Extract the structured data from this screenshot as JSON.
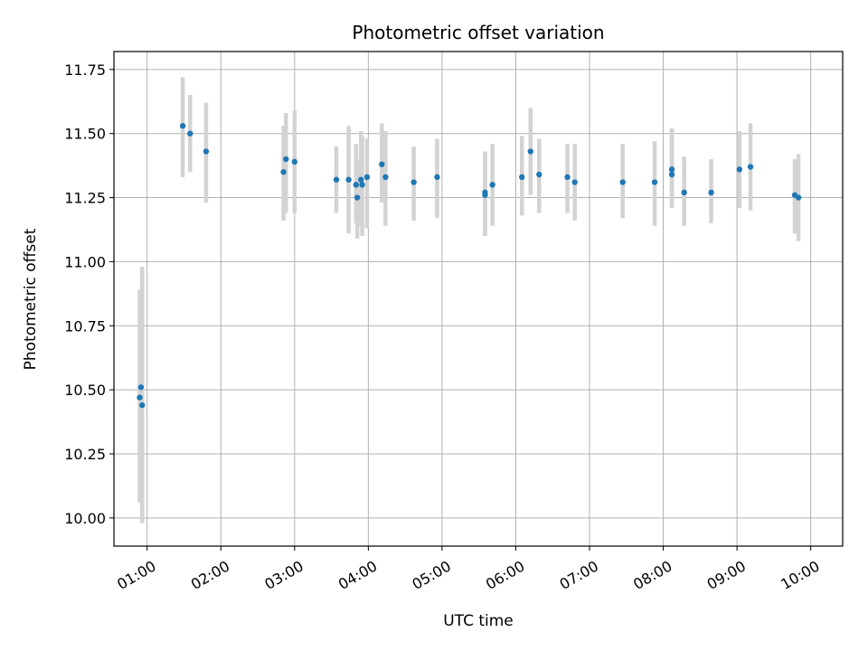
{
  "chart_data": {
    "type": "scatter",
    "title": "Photometric offset variation",
    "xlabel": "UTC time",
    "ylabel": "Photometric offset",
    "xlim": [
      "00:33",
      "10:26"
    ],
    "ylim": [
      9.89,
      11.82
    ],
    "grid": true,
    "x_ticks": [
      "01:00",
      "02:00",
      "03:00",
      "04:00",
      "05:00",
      "06:00",
      "07:00",
      "08:00",
      "09:00",
      "10:00"
    ],
    "y_ticks": [
      "10.00",
      "10.25",
      "10.50",
      "10.75",
      "11.00",
      "11.25",
      "11.50",
      "11.75"
    ],
    "marker_color": "#1f77b4",
    "errorbar_color": "#d3d3d3",
    "points": [
      {
        "t": "00:54",
        "y": 10.47,
        "lo": 10.06,
        "hi": 10.89
      },
      {
        "t": "00:55",
        "y": 10.51,
        "lo": 10.06,
        "hi": 10.89
      },
      {
        "t": "00:56",
        "y": 10.44,
        "lo": 9.98,
        "hi": 10.98
      },
      {
        "t": "01:29",
        "y": 11.53,
        "lo": 11.33,
        "hi": 11.72
      },
      {
        "t": "01:35",
        "y": 11.5,
        "lo": 11.35,
        "hi": 11.65
      },
      {
        "t": "01:48",
        "y": 11.43,
        "lo": 11.23,
        "hi": 11.62
      },
      {
        "t": "02:51",
        "y": 11.35,
        "lo": 11.16,
        "hi": 11.53
      },
      {
        "t": "02:53",
        "y": 11.4,
        "lo": 11.19,
        "hi": 11.58
      },
      {
        "t": "03:00",
        "y": 11.39,
        "lo": 11.19,
        "hi": 11.59
      },
      {
        "t": "03:34",
        "y": 11.32,
        "lo": 11.19,
        "hi": 11.45
      },
      {
        "t": "03:44",
        "y": 11.32,
        "lo": 11.11,
        "hi": 11.53
      },
      {
        "t": "03:50",
        "y": 11.3,
        "lo": 11.15,
        "hi": 11.46
      },
      {
        "t": "03:51",
        "y": 11.25,
        "lo": 11.09,
        "hi": 11.4
      },
      {
        "t": "03:54",
        "y": 11.32,
        "lo": 11.14,
        "hi": 11.51
      },
      {
        "t": "03:55",
        "y": 11.3,
        "lo": 11.1,
        "hi": 11.49
      },
      {
        "t": "03:59",
        "y": 11.33,
        "lo": 11.13,
        "hi": 11.48
      },
      {
        "t": "04:11",
        "y": 11.38,
        "lo": 11.23,
        "hi": 11.54
      },
      {
        "t": "04:14",
        "y": 11.33,
        "lo": 11.14,
        "hi": 11.51
      },
      {
        "t": "04:37",
        "y": 11.31,
        "lo": 11.16,
        "hi": 11.45
      },
      {
        "t": "04:56",
        "y": 11.33,
        "lo": 11.17,
        "hi": 11.48
      },
      {
        "t": "05:35",
        "y": 11.27,
        "lo": 11.1,
        "hi": 11.43
      },
      {
        "t": "05:35",
        "y": 11.26,
        "lo": 11.1,
        "hi": 11.43
      },
      {
        "t": "05:41",
        "y": 11.3,
        "lo": 11.14,
        "hi": 11.46
      },
      {
        "t": "06:05",
        "y": 11.33,
        "lo": 11.18,
        "hi": 11.49
      },
      {
        "t": "06:12",
        "y": 11.43,
        "lo": 11.26,
        "hi": 11.6
      },
      {
        "t": "06:19",
        "y": 11.34,
        "lo": 11.19,
        "hi": 11.48
      },
      {
        "t": "06:42",
        "y": 11.33,
        "lo": 11.19,
        "hi": 11.46
      },
      {
        "t": "06:48",
        "y": 11.31,
        "lo": 11.16,
        "hi": 11.46
      },
      {
        "t": "07:27",
        "y": 11.31,
        "lo": 11.17,
        "hi": 11.46
      },
      {
        "t": "07:53",
        "y": 11.31,
        "lo": 11.14,
        "hi": 11.47
      },
      {
        "t": "08:07",
        "y": 11.36,
        "lo": 11.23,
        "hi": 11.52
      },
      {
        "t": "08:07",
        "y": 11.34,
        "lo": 11.21,
        "hi": 11.52
      },
      {
        "t": "08:17",
        "y": 11.27,
        "lo": 11.14,
        "hi": 11.41
      },
      {
        "t": "08:39",
        "y": 11.27,
        "lo": 11.15,
        "hi": 11.4
      },
      {
        "t": "09:02",
        "y": 11.36,
        "lo": 11.21,
        "hi": 11.51
      },
      {
        "t": "09:11",
        "y": 11.37,
        "lo": 11.2,
        "hi": 11.54
      },
      {
        "t": "09:47",
        "y": 11.26,
        "lo": 11.11,
        "hi": 11.4
      },
      {
        "t": "09:50",
        "y": 11.25,
        "lo": 11.08,
        "hi": 11.42
      }
    ]
  }
}
